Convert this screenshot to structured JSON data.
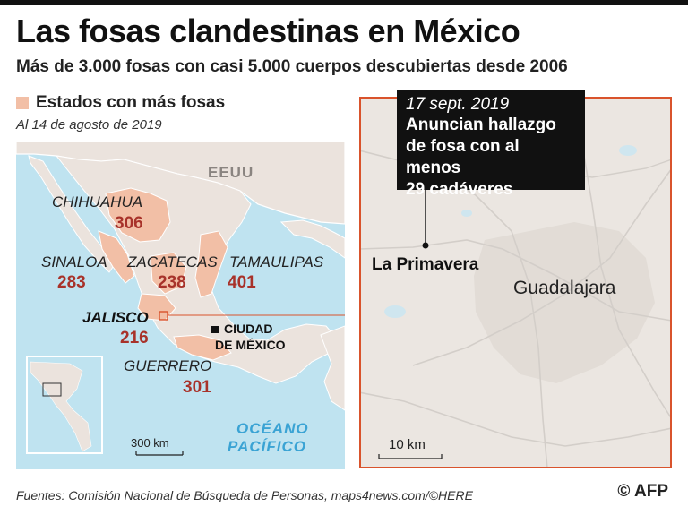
{
  "header": {
    "title": "Las fosas clandestinas en México",
    "subtitle": "Más de 3.000 fosas con casi 5.000 cuerpos descubiertas desde 2006"
  },
  "legend": {
    "label": "Estados con más fosas",
    "swatch_color": "#f2bfa6",
    "date_note": "Al 14 de agosto de 2019"
  },
  "overview_map": {
    "country_label": "EEUU",
    "ocean_label_line1": "OCÉANO",
    "ocean_label_line2": "PACÍFICO",
    "capital_label_line1": "CIUDAD",
    "capital_label_line2": "DE MÉXICO",
    "scale_label": "300 km",
    "states": [
      {
        "name": "CHIHUAHUA",
        "count": "306"
      },
      {
        "name": "SINALOA",
        "count": "283"
      },
      {
        "name": "ZACATECAS",
        "count": "238"
      },
      {
        "name": "TAMAULIPAS",
        "count": "401"
      },
      {
        "name": "JALISCO",
        "count": "216"
      },
      {
        "name": "GUERRERO",
        "count": "301"
      }
    ]
  },
  "detail_map": {
    "city_label": "Guadalajara",
    "place_label": "La Primavera",
    "scale_label": "10 km",
    "callout": {
      "date": "17 sept. 2019",
      "lines": [
        "Anuncian hallazgo",
        "de fosa con al menos",
        "29 cadáveres"
      ]
    }
  },
  "footer": {
    "source": "Fuentes: Comisión Nacional de Búsqueda de Personas, maps4news.com/©HERE",
    "credit": "© AFP"
  },
  "colors": {
    "water": "#bfe3f0",
    "land": "#ebe3dd",
    "highlight": "#f2bfa6",
    "accent": "#d9532c",
    "count": "#a8322a",
    "ocean_label": "#3aa3d4"
  }
}
